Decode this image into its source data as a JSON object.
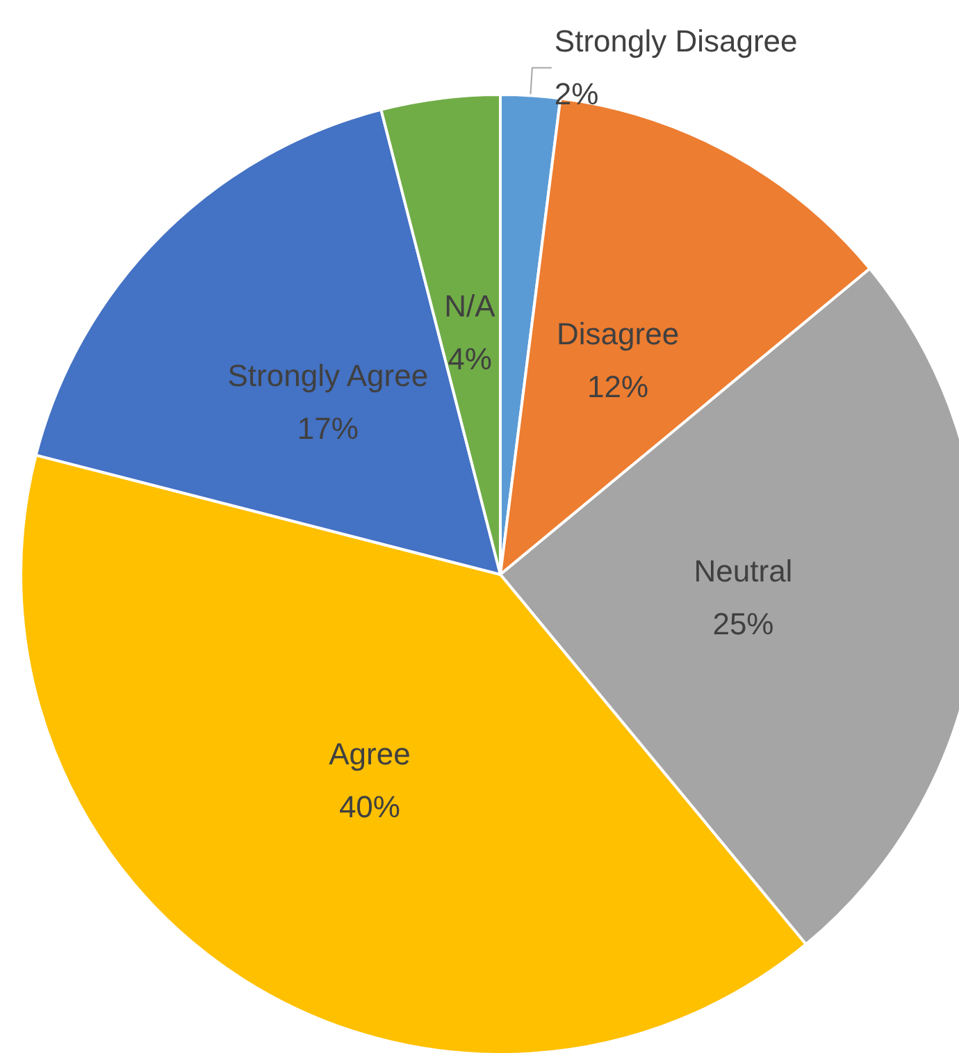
{
  "chart_data": {
    "type": "pie",
    "categories": [
      "Strongly Disagree",
      "Disagree",
      "Neutral",
      "Agree",
      "Strongly Agree",
      "N/A"
    ],
    "values": [
      2,
      12,
      25,
      40,
      17,
      4
    ],
    "colors": [
      "#5b9bd5",
      "#ed7d31",
      "#a5a5a5",
      "#ffc000",
      "#4472c4",
      "#70ad47"
    ],
    "value_labels": [
      "2%",
      "12%",
      "25%",
      "40%",
      "17%",
      "4%"
    ]
  }
}
